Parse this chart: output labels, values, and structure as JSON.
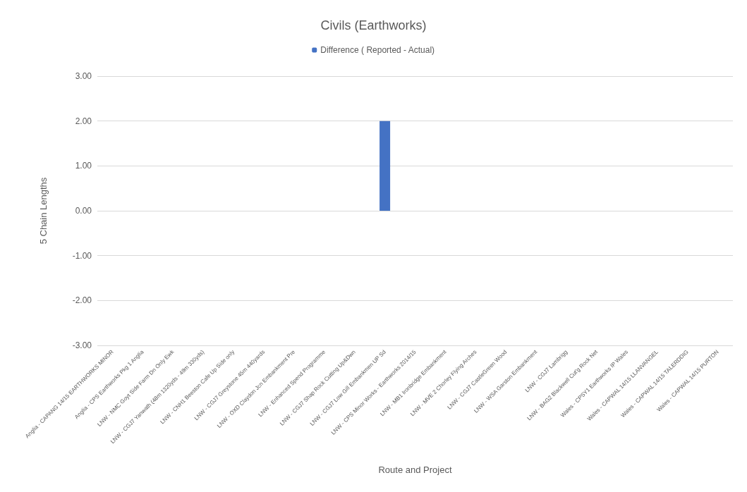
{
  "chart_data": {
    "type": "bar",
    "title": "Civils (Earthworks)",
    "xlabel": "Route and Project",
    "ylabel": "5 Chain Lengths",
    "categories": [
      "Anglia - CAPANG 14/15 EARTHWORKS MINOR",
      "Anglia - CPS Earthworks Pkg 1 Anglia",
      "LNW - NMC Goyt Side Farm Dn Only Ewk",
      "LNW - CGJ7 Yanwath (48m 1320yds - 49m 330yds)",
      "LNW - CNH1 Beeston Cafe Up Side only",
      "LNW - CGJ7 Greystone 45m 440yards",
      "LNW - OXD Claydon Jcn Embankment Pre",
      "LNW - Enhanced Spend Programme",
      "LNW - CGJ7 Shap Rock Cutting Up&Dwn",
      "LNW - CGJ7 Low Gill Embankmen UP Sd",
      "LNW - CPS Minor Works - Earthworks 2014/15",
      "LNW - MB1 Ironbridge Embankment",
      "LNW - MVE 2 Chorley Flying Arches",
      "LNW - CGJ7 CastleGreen Wood",
      "LNW - WSA Garston Embankment",
      "LNW - CGJ7 Lambrigg",
      "LNW - BAG2 Blackwell Cut'g Rock Net",
      "Wales - CPSY1 Earthworks IP Wales",
      "Wales - CAPWAL 14/15 LLANVANGEL",
      "Wales - CAPWAL 14/15 TALERDDIG",
      "Wales - CAPWAL 14/15 PURTON"
    ],
    "series": [
      {
        "name": "Difference ( Reported - Actual)",
        "color": "#4472c4",
        "values": [
          0,
          0,
          0,
          0,
          0,
          0,
          0,
          0,
          0,
          2,
          0,
          0,
          0,
          0,
          0,
          0,
          0,
          0,
          0,
          0,
          0
        ]
      }
    ],
    "ylim": [
      -3,
      3
    ],
    "yticks": [
      {
        "value": -3,
        "label": "-3.00"
      },
      {
        "value": -2,
        "label": "-2.00"
      },
      {
        "value": -1,
        "label": "-1.00"
      },
      {
        "value": 0,
        "label": "0.00"
      },
      {
        "value": 1,
        "label": "1.00"
      },
      {
        "value": 2,
        "label": "2.00"
      },
      {
        "value": 3,
        "label": "3.00"
      }
    ],
    "grid": "y",
    "legend": "top"
  }
}
